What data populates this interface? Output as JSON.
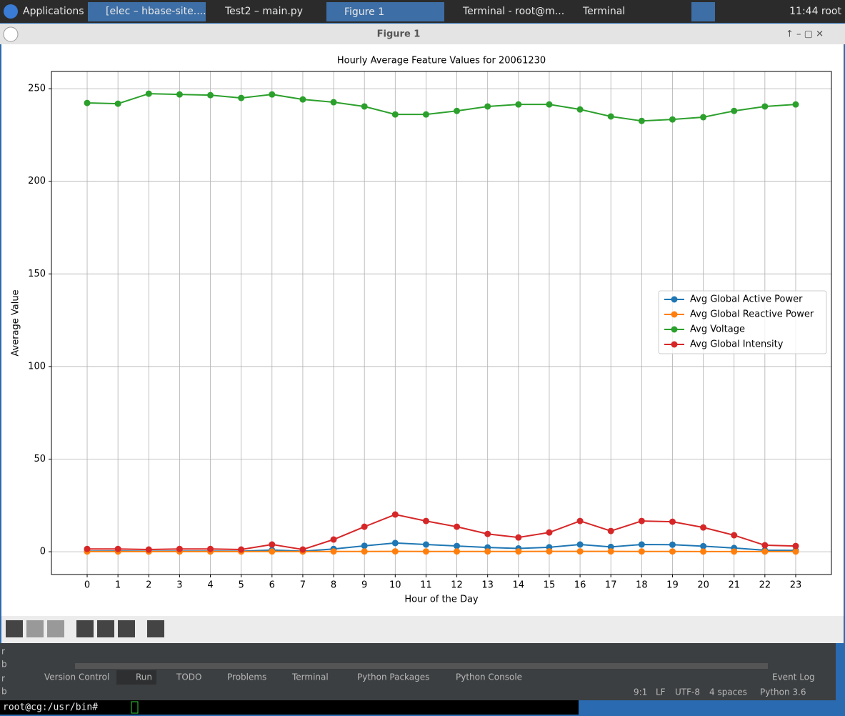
{
  "taskbar": {
    "menu": "Applications",
    "tasks": [
      "[elec – hbase-site....",
      "Test2 – main.py",
      "Figure 1",
      "Terminal - root@m...",
      "Terminal"
    ],
    "clock": "11:44 root"
  },
  "window": {
    "title": "Figure 1"
  },
  "ide": {
    "side_chars": [
      "r",
      "b",
      "r",
      "b"
    ],
    "tabs": [
      "Version Control",
      "Run",
      "TODO",
      "Problems",
      "Terminal",
      "Python Packages",
      "Python Console"
    ],
    "event_log": "Event Log",
    "status": [
      "9:1",
      "LF",
      "UTF-8",
      "4 spaces",
      "Python 3.6"
    ]
  },
  "terminal": {
    "prompt": "root@cg:/usr/bin#"
  },
  "chart_data": {
    "type": "line",
    "title": "Hourly Average Feature Values for 20061230",
    "x_label": "Hour of the Day",
    "y_label": "Average Value",
    "x": [
      0,
      1,
      2,
      3,
      4,
      5,
      6,
      7,
      8,
      9,
      10,
      11,
      12,
      13,
      14,
      15,
      16,
      17,
      18,
      19,
      20,
      21,
      22,
      23
    ],
    "xlim": [
      -1.16,
      24.16
    ],
    "xticks": [
      0,
      1,
      2,
      3,
      4,
      5,
      6,
      7,
      8,
      9,
      10,
      11,
      12,
      13,
      14,
      15,
      16,
      17,
      18,
      19,
      20,
      21,
      22,
      23
    ],
    "ylim": [
      -12.3,
      259.3
    ],
    "yticks": [
      0,
      50,
      100,
      150,
      200,
      250
    ],
    "grid": true,
    "legend": "center right",
    "series": [
      {
        "name": "Avg Global Active Power",
        "color": "#1f77b4",
        "values": [
          0.35,
          0.36,
          0.3,
          0.35,
          0.35,
          0.3,
          0.9,
          0.3,
          1.5,
          3.2,
          4.7,
          3.9,
          3.1,
          2.3,
          1.8,
          2.4,
          3.9,
          2.6,
          3.9,
          3.8,
          3.0,
          2.0,
          0.8,
          0.7
        ]
      },
      {
        "name": "Avg Global Reactive Power",
        "color": "#ff7f0e",
        "values": [
          0.1,
          0.1,
          0.1,
          0.1,
          0.1,
          0.1,
          0.15,
          0.1,
          0.15,
          0.15,
          0.2,
          0.15,
          0.15,
          0.15,
          0.15,
          0.2,
          0.2,
          0.2,
          0.15,
          0.15,
          0.1,
          0.1,
          0.1,
          0.1
        ]
      },
      {
        "name": "Avg Voltage",
        "color": "#2ca02c",
        "values": [
          242.3,
          241.9,
          247.3,
          246.9,
          246.5,
          245.0,
          246.9,
          244.2,
          242.7,
          240.4,
          236.1,
          236.1,
          238.0,
          240.4,
          241.5,
          241.5,
          238.8,
          235.0,
          232.6,
          233.4,
          234.6,
          238.0,
          240.4,
          241.5
        ]
      },
      {
        "name": "Avg Global Intensity",
        "color": "#d62728",
        "values": [
          1.5,
          1.5,
          1.2,
          1.5,
          1.5,
          1.2,
          3.9,
          1.2,
          6.6,
          13.5,
          20.1,
          16.6,
          13.5,
          9.6,
          7.7,
          10.4,
          16.6,
          11.2,
          16.6,
          16.2,
          13.1,
          8.9,
          3.5,
          3.1
        ]
      }
    ]
  }
}
